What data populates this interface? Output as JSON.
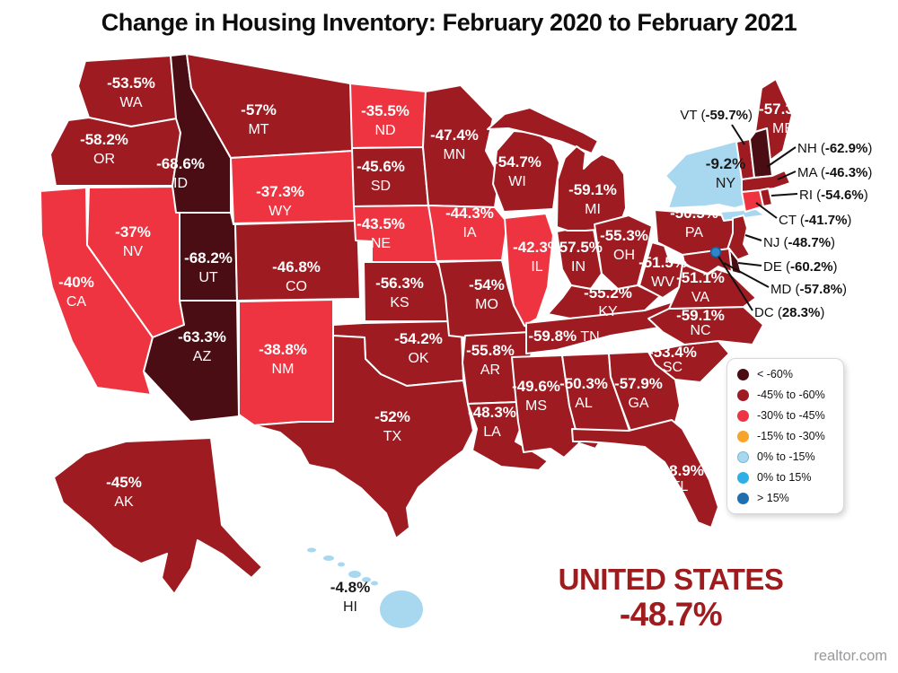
{
  "title": "Change in Housing Inventory: February 2020 to February 2021",
  "colors": {
    "lt_m60": "#4a0d13",
    "m45_60": "#9e1b21",
    "m30_45": "#ee3440",
    "m15_30": "#f6a42a",
    "z0_m15": "#a8d8f0",
    "z0_15": "#2eb0e6",
    "gt15": "#1f6eb0",
    "callout_text": "#111111",
    "map_border": "#ffffff",
    "summary": "#9e1b1e",
    "watermark": "#97999c",
    "dc_dot": "#2e86c6",
    "dc_dot_edge": "#1a5a96"
  },
  "map": {
    "states": [
      {
        "abbr": "WA",
        "value": "-53.5%",
        "category": "m45_60"
      },
      {
        "abbr": "OR",
        "value": "-58.2%",
        "category": "m45_60"
      },
      {
        "abbr": "CA",
        "value": "-40%",
        "category": "m30_45"
      },
      {
        "abbr": "NV",
        "value": "-37%",
        "category": "m30_45"
      },
      {
        "abbr": "ID",
        "value": "-68.6%",
        "category": "lt_m60"
      },
      {
        "abbr": "MT",
        "value": "-57%",
        "category": "m45_60"
      },
      {
        "abbr": "WY",
        "value": "-37.3%",
        "category": "m30_45"
      },
      {
        "abbr": "UT",
        "value": "-68.2%",
        "category": "lt_m60"
      },
      {
        "abbr": "CO",
        "value": "-46.8%",
        "category": "m45_60"
      },
      {
        "abbr": "AZ",
        "value": "-63.3%",
        "category": "lt_m60"
      },
      {
        "abbr": "NM",
        "value": "-38.8%",
        "category": "m30_45"
      },
      {
        "abbr": "ND",
        "value": "-35.5%",
        "category": "m30_45"
      },
      {
        "abbr": "SD",
        "value": "-45.6%",
        "category": "m45_60"
      },
      {
        "abbr": "NE",
        "value": "-43.5%",
        "category": "m30_45"
      },
      {
        "abbr": "KS",
        "value": "-56.3%",
        "category": "m45_60"
      },
      {
        "abbr": "OK",
        "value": "-54.2%",
        "category": "m45_60"
      },
      {
        "abbr": "TX",
        "value": "-52%",
        "category": "m45_60"
      },
      {
        "abbr": "MN",
        "value": "-47.4%",
        "category": "m45_60"
      },
      {
        "abbr": "IA",
        "value": "-44.3%",
        "category": "m30_45"
      },
      {
        "abbr": "MO",
        "value": "-54%",
        "category": "m45_60"
      },
      {
        "abbr": "AR",
        "value": "-55.8%",
        "category": "m45_60"
      },
      {
        "abbr": "LA",
        "value": "-48.3%",
        "category": "m45_60"
      },
      {
        "abbr": "WI",
        "value": "-54.7%",
        "category": "m45_60"
      },
      {
        "abbr": "IL",
        "value": "-42.3%",
        "category": "m30_45"
      },
      {
        "abbr": "IN",
        "value": "-57.5%",
        "category": "m45_60"
      },
      {
        "abbr": "MI",
        "value": "-59.1%",
        "category": "m45_60"
      },
      {
        "abbr": "OH",
        "value": "-55.3%",
        "category": "m45_60"
      },
      {
        "abbr": "KY",
        "value": "-55.2%",
        "category": "m45_60"
      },
      {
        "abbr": "TN",
        "value": "-59.8%",
        "category": "m45_60"
      },
      {
        "abbr": "MS",
        "value": "-49.6%",
        "category": "m45_60"
      },
      {
        "abbr": "AL",
        "value": "-50.3%",
        "category": "m45_60"
      },
      {
        "abbr": "GA",
        "value": "-57.9%",
        "category": "m45_60"
      },
      {
        "abbr": "FL",
        "value": "-48.9%",
        "category": "m45_60"
      },
      {
        "abbr": "SC",
        "value": "-53.4%",
        "category": "m45_60"
      },
      {
        "abbr": "NC",
        "value": "-59.1%",
        "category": "m45_60"
      },
      {
        "abbr": "VA",
        "value": "-51.1%",
        "category": "m45_60"
      },
      {
        "abbr": "WV",
        "value": "-51.5%",
        "category": "m45_60"
      },
      {
        "abbr": "PA",
        "value": "-50.5%",
        "category": "m45_60"
      },
      {
        "abbr": "NY",
        "value": "-9.2%",
        "category": "z0_m15"
      },
      {
        "abbr": "ME",
        "value": "-57.3%",
        "category": "m45_60"
      },
      {
        "abbr": "AK",
        "value": "-45%",
        "category": "m45_60"
      },
      {
        "abbr": "HI",
        "value": "-4.8%",
        "category": "z0_m15"
      }
    ],
    "callouts": [
      {
        "abbr": "VT",
        "value": "-59.7%",
        "category": "m45_60"
      },
      {
        "abbr": "NH",
        "value": "-62.9%",
        "category": "lt_m60"
      },
      {
        "abbr": "MA",
        "value": "-46.3%",
        "category": "m45_60"
      },
      {
        "abbr": "RI",
        "value": "-54.6%",
        "category": "m45_60"
      },
      {
        "abbr": "CT",
        "value": "-41.7%",
        "category": "m30_45"
      },
      {
        "abbr": "NJ",
        "value": "-48.7%",
        "category": "m45_60"
      },
      {
        "abbr": "DE",
        "value": "-60.2%",
        "category": "lt_m60"
      },
      {
        "abbr": "MD",
        "value": "-57.8%",
        "category": "m45_60"
      },
      {
        "abbr": "DC",
        "value": "28.3%",
        "category": "gt15"
      }
    ]
  },
  "legend": {
    "items": [
      {
        "label": "< -60%",
        "category": "lt_m60"
      },
      {
        "label": "-45% to -60%",
        "category": "m45_60"
      },
      {
        "label": "-30% to -45%",
        "category": "m30_45"
      },
      {
        "label": "-15% to -30%",
        "category": "m15_30"
      },
      {
        "label": "0% to -15%",
        "category": "z0_m15"
      },
      {
        "label": "0% to 15%",
        "category": "z0_15"
      },
      {
        "label": "> 15%",
        "category": "gt15"
      }
    ]
  },
  "summary": {
    "label": "UNITED STATES",
    "value": "-48.7%"
  },
  "watermark": "realtor.com"
}
